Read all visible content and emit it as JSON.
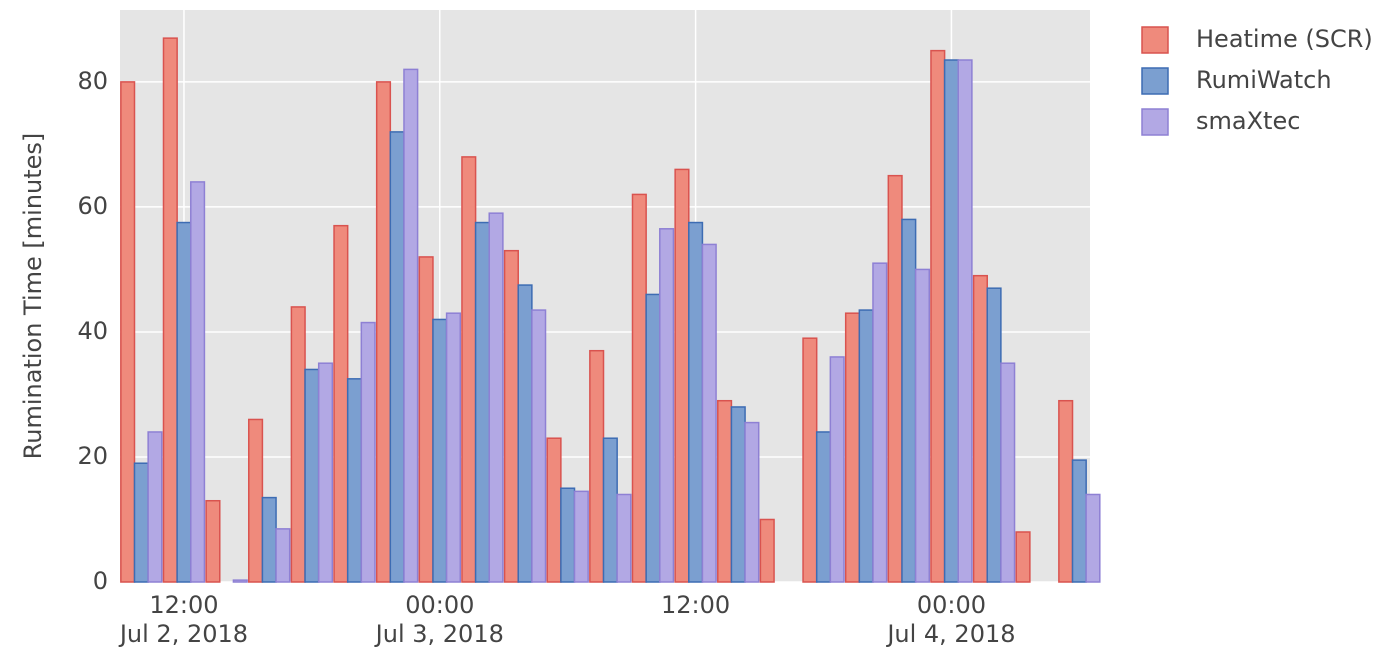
{
  "chart_data": {
    "type": "bar",
    "ylabel": "Rumination Time [minutes]",
    "x": [
      "2018-07-02T10:00",
      "2018-07-02T12:00",
      "2018-07-02T14:00",
      "2018-07-02T16:00",
      "2018-07-02T18:00",
      "2018-07-02T20:00",
      "2018-07-02T22:00",
      "2018-07-03T00:00",
      "2018-07-03T02:00",
      "2018-07-03T04:00",
      "2018-07-03T06:00",
      "2018-07-03T08:00",
      "2018-07-03T10:00",
      "2018-07-03T12:00",
      "2018-07-03T14:00",
      "2018-07-03T16:00",
      "2018-07-03T18:00",
      "2018-07-03T20:00",
      "2018-07-03T22:00",
      "2018-07-04T00:00",
      "2018-07-04T02:00",
      "2018-07-04T04:00",
      "2018-07-04T06:00"
    ],
    "series": [
      {
        "name": "Heatime (SCR)",
        "color": "#ef8a7c",
        "stroke": "#d9534f",
        "values": [
          80,
          87,
          13,
          26,
          44,
          57,
          80,
          52,
          68,
          53,
          23,
          37,
          62,
          66,
          29,
          10,
          39,
          43,
          65,
          85,
          49,
          8,
          29
        ]
      },
      {
        "name": "RumiWatch",
        "color": "#7b9fd0",
        "stroke": "#3d6cb3",
        "values": [
          19,
          57.5,
          null,
          13.5,
          34,
          32.5,
          72,
          42,
          57.5,
          47.5,
          15,
          23,
          46,
          57.5,
          28,
          null,
          24,
          43.5,
          58,
          83.5,
          47,
          null,
          19.5
        ]
      },
      {
        "name": "smaXtec",
        "color": "#b2a8e4",
        "stroke": "#8e80d4",
        "values": [
          24,
          64,
          0.3,
          8.5,
          35,
          41.5,
          82,
          43,
          59,
          43.5,
          14.5,
          14,
          56.5,
          54,
          25.5,
          null,
          36,
          51,
          50,
          83.5,
          35,
          null,
          14
        ]
      }
    ],
    "xlim": [
      "2018-07-02T09:00",
      "2018-07-04T06:30"
    ],
    "xticks": [
      {
        "value": "2018-07-02T12:00",
        "label": [
          "12:00",
          "Jul 2, 2018"
        ]
      },
      {
        "value": "2018-07-03T00:00",
        "label": [
          "00:00",
          "Jul 3, 2018"
        ]
      },
      {
        "value": "2018-07-03T12:00",
        "label": [
          "12:00"
        ]
      },
      {
        "value": "2018-07-04T00:00",
        "label": [
          "00:00",
          "Jul 4, 2018"
        ]
      }
    ],
    "ylim": [
      0,
      91.5
    ],
    "yticks": [
      0,
      20,
      40,
      60,
      80
    ],
    "grid": true,
    "legend": "right"
  }
}
